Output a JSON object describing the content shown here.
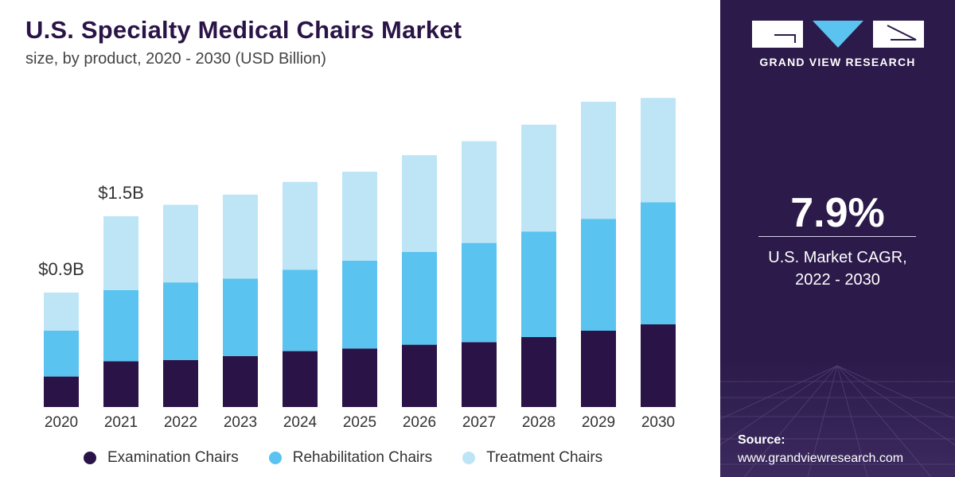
{
  "header": {
    "title": "U.S. Specialty Medical Chairs Market",
    "subtitle": "size, by product, 2020 - 2030 (USD Billion)"
  },
  "brand": {
    "name": "GRAND VIEW RESEARCH"
  },
  "stat": {
    "value": "7.9%",
    "label_line1": "U.S. Market CAGR,",
    "label_line2": "2022 - 2030"
  },
  "source": {
    "heading": "Source:",
    "url": "www.grandviewresearch.com"
  },
  "legend": [
    {
      "label": "Examination Chairs",
      "color": "#2a1447"
    },
    {
      "label": "Rehabilitation Chairs",
      "color": "#5bc3ef"
    },
    {
      "label": "Treatment Chairs",
      "color": "#bde5f6"
    }
  ],
  "chart_data": {
    "type": "bar",
    "stacked": true,
    "categories": [
      "2020",
      "2021",
      "2022",
      "2023",
      "2024",
      "2025",
      "2026",
      "2027",
      "2028",
      "2029",
      "2030"
    ],
    "series": [
      {
        "name": "Examination Chairs",
        "color": "#2a1447",
        "values": [
          0.24,
          0.36,
          0.37,
          0.4,
          0.44,
          0.46,
          0.49,
          0.51,
          0.55,
          0.6,
          0.65
        ]
      },
      {
        "name": "Rehabilitation Chairs",
        "color": "#5bc3ef",
        "values": [
          0.36,
          0.56,
          0.61,
          0.61,
          0.64,
          0.69,
          0.73,
          0.78,
          0.83,
          0.88,
          0.96
        ]
      },
      {
        "name": "Treatment Chairs",
        "color": "#bde5f6",
        "values": [
          0.3,
          0.58,
          0.61,
          0.66,
          0.69,
          0.7,
          0.76,
          0.8,
          0.84,
          0.92,
          0.82
        ]
      }
    ],
    "data_labels": [
      {
        "category": "2020",
        "text": "$0.9B"
      },
      {
        "category": "2021",
        "text": "$1.5B"
      }
    ],
    "ylim": [
      0,
      2.5
    ],
    "grid": false,
    "legend_position": "bottom"
  }
}
